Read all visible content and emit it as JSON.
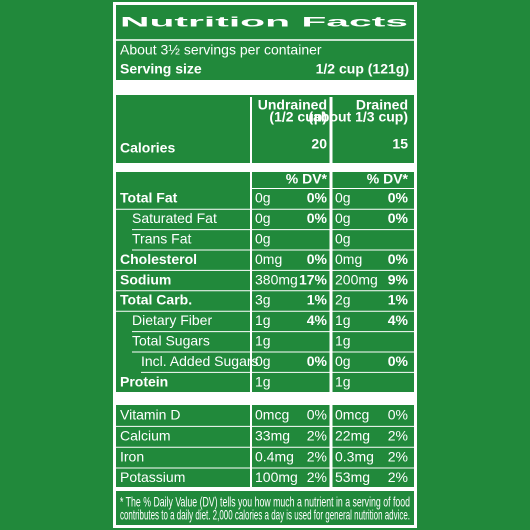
{
  "title": "Nutrition Facts",
  "servings": "About 3½ servings per container",
  "serving_size": {
    "label": "Serving size",
    "value": "1/2 cup (121g)"
  },
  "columns": [
    {
      "name": "Undrained",
      "portion": "(1/2 cup)"
    },
    {
      "name": "Drained",
      "portion": "(about 1/3 cup)"
    }
  ],
  "calories": {
    "label": "Calories",
    "values": [
      20,
      15
    ]
  },
  "dv_header": "% DV*",
  "nutrients": [
    {
      "label": "Total Fat",
      "amounts": [
        "0g",
        "0g"
      ],
      "dv": [
        "0%",
        "0%"
      ]
    },
    {
      "label": "Saturated Fat",
      "amounts": [
        "0g",
        "0g"
      ],
      "dv": [
        "0%",
        "0%"
      ]
    },
    {
      "label": "Trans Fat",
      "amounts": [
        "0g",
        "0g"
      ]
    },
    {
      "label": "Cholesterol",
      "amounts": [
        "0mg",
        "0mg"
      ],
      "dv": [
        "0%",
        "0%"
      ]
    },
    {
      "label": "Sodium",
      "amounts": [
        "380mg",
        "200mg"
      ],
      "dv": [
        "17%",
        "9%"
      ]
    },
    {
      "label": "Total Carb.",
      "amounts": [
        "3g",
        "2g"
      ],
      "dv": [
        "1%",
        "1%"
      ]
    },
    {
      "label": "Dietary Fiber",
      "amounts": [
        "1g",
        "1g"
      ],
      "dv": [
        "4%",
        "4%"
      ]
    },
    {
      "label": "Total Sugars",
      "amounts": [
        "1g",
        "1g"
      ]
    },
    {
      "label": "Incl. Added Sugars",
      "amounts": [
        "0g",
        "0g"
      ],
      "dv": [
        "0%",
        "0%"
      ]
    },
    {
      "label": "Protein",
      "amounts": [
        "1g",
        "1g"
      ]
    }
  ],
  "vitamins": [
    {
      "label": "Vitamin D",
      "amounts": [
        "0mcg",
        "0mcg"
      ],
      "dv": [
        "0%",
        "0%"
      ]
    },
    {
      "label": "Calcium",
      "amounts": [
        "33mg",
        "22mg"
      ],
      "dv": [
        "2%",
        "2%"
      ]
    },
    {
      "label": "Iron",
      "amounts": [
        "0.4mg",
        "0.3mg"
      ],
      "dv": [
        "2%",
        "2%"
      ]
    },
    {
      "label": "Potassium",
      "amounts": [
        "100mg",
        "53mg"
      ],
      "dv": [
        "2%",
        "2%"
      ]
    }
  ],
  "footnote": [
    "* The % Daily Value (DV) tells you how much a nutrient in a serving of food",
    "contributes to a daily diet. 2,000 calories a day is used for general nutrition advice."
  ]
}
